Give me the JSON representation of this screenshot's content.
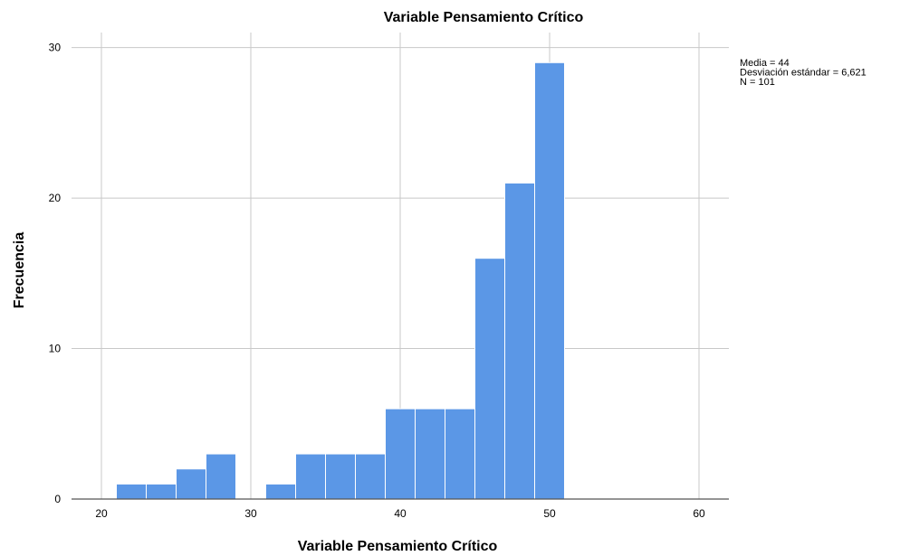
{
  "chart_data": {
    "type": "bar",
    "subtype": "histogram",
    "title": "Variable Pensamiento Crítico",
    "xlabel": "Variable Pensamiento Crítico",
    "ylabel": "Frecuencia",
    "xlim": [
      18,
      62
    ],
    "ylim": [
      0,
      31
    ],
    "x_ticks": [
      20,
      30,
      40,
      50,
      60
    ],
    "y_ticks": [
      0,
      10,
      20,
      30
    ],
    "bin_width": 2,
    "bins": [
      {
        "start": 21,
        "end": 23,
        "count": 1
      },
      {
        "start": 23,
        "end": 25,
        "count": 1
      },
      {
        "start": 25,
        "end": 27,
        "count": 2
      },
      {
        "start": 27,
        "end": 29,
        "count": 3
      },
      {
        "start": 29,
        "end": 31,
        "count": 0
      },
      {
        "start": 31,
        "end": 33,
        "count": 1
      },
      {
        "start": 33,
        "end": 35,
        "count": 3
      },
      {
        "start": 35,
        "end": 37,
        "count": 3
      },
      {
        "start": 37,
        "end": 39,
        "count": 3
      },
      {
        "start": 39,
        "end": 41,
        "count": 6
      },
      {
        "start": 41,
        "end": 43,
        "count": 6
      },
      {
        "start": 43,
        "end": 45,
        "count": 6
      },
      {
        "start": 45,
        "end": 47,
        "count": 16
      },
      {
        "start": 47,
        "end": 49,
        "count": 21
      },
      {
        "start": 49,
        "end": 51,
        "count": 29
      }
    ],
    "bar_color": "#5b97e6",
    "grid": true,
    "stats": [
      "Media = 44",
      "Desviación estándar = 6,621",
      "N = 101"
    ]
  }
}
